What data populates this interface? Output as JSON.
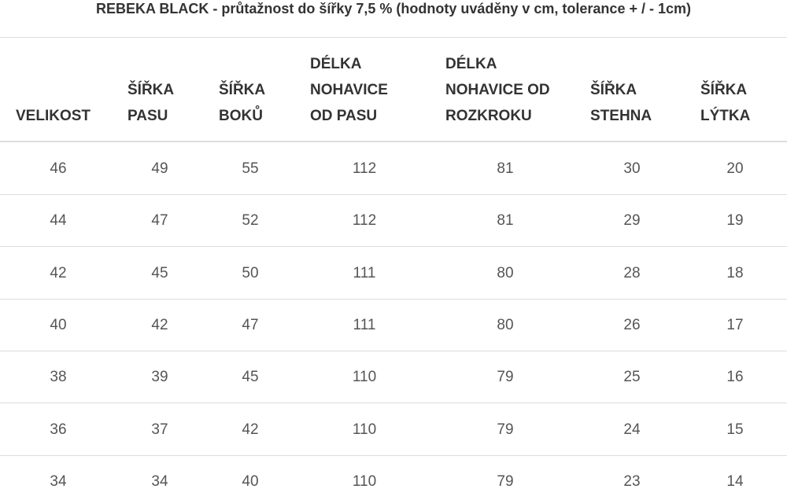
{
  "title": "REBEKA BLACK - průtažnost do šířky 7,5 % (hodnoty uváděny v cm, tolerance + / - 1cm)",
  "table": {
    "headers": [
      [
        "VELIKOST"
      ],
      [
        "ŠÍŘKA",
        "PASU"
      ],
      [
        "ŠÍŘKA",
        "BOKŮ"
      ],
      [
        "DÉLKA",
        "NOHAVICE",
        "OD PASU"
      ],
      [
        "DÉLKA",
        "NOHAVICE OD",
        "ROZKROKU"
      ],
      [
        "ŠÍŘKA",
        "STEHNA"
      ],
      [
        "ŠÍŘKA",
        "LÝTKA"
      ]
    ],
    "rows": [
      [
        "46",
        "49",
        "55",
        "112",
        "81",
        "30",
        "20"
      ],
      [
        "44",
        "47",
        "52",
        "112",
        "81",
        "29",
        "19"
      ],
      [
        "42",
        "45",
        "50",
        "111",
        "80",
        "28",
        "18"
      ],
      [
        "40",
        "42",
        "47",
        "111",
        "80",
        "26",
        "17"
      ],
      [
        "38",
        "39",
        "45",
        "110",
        "79",
        "25",
        "16"
      ],
      [
        "36",
        "37",
        "42",
        "110",
        "79",
        "24",
        "15"
      ],
      [
        "34",
        "34",
        "40",
        "110",
        "79",
        "23",
        "14"
      ]
    ]
  }
}
